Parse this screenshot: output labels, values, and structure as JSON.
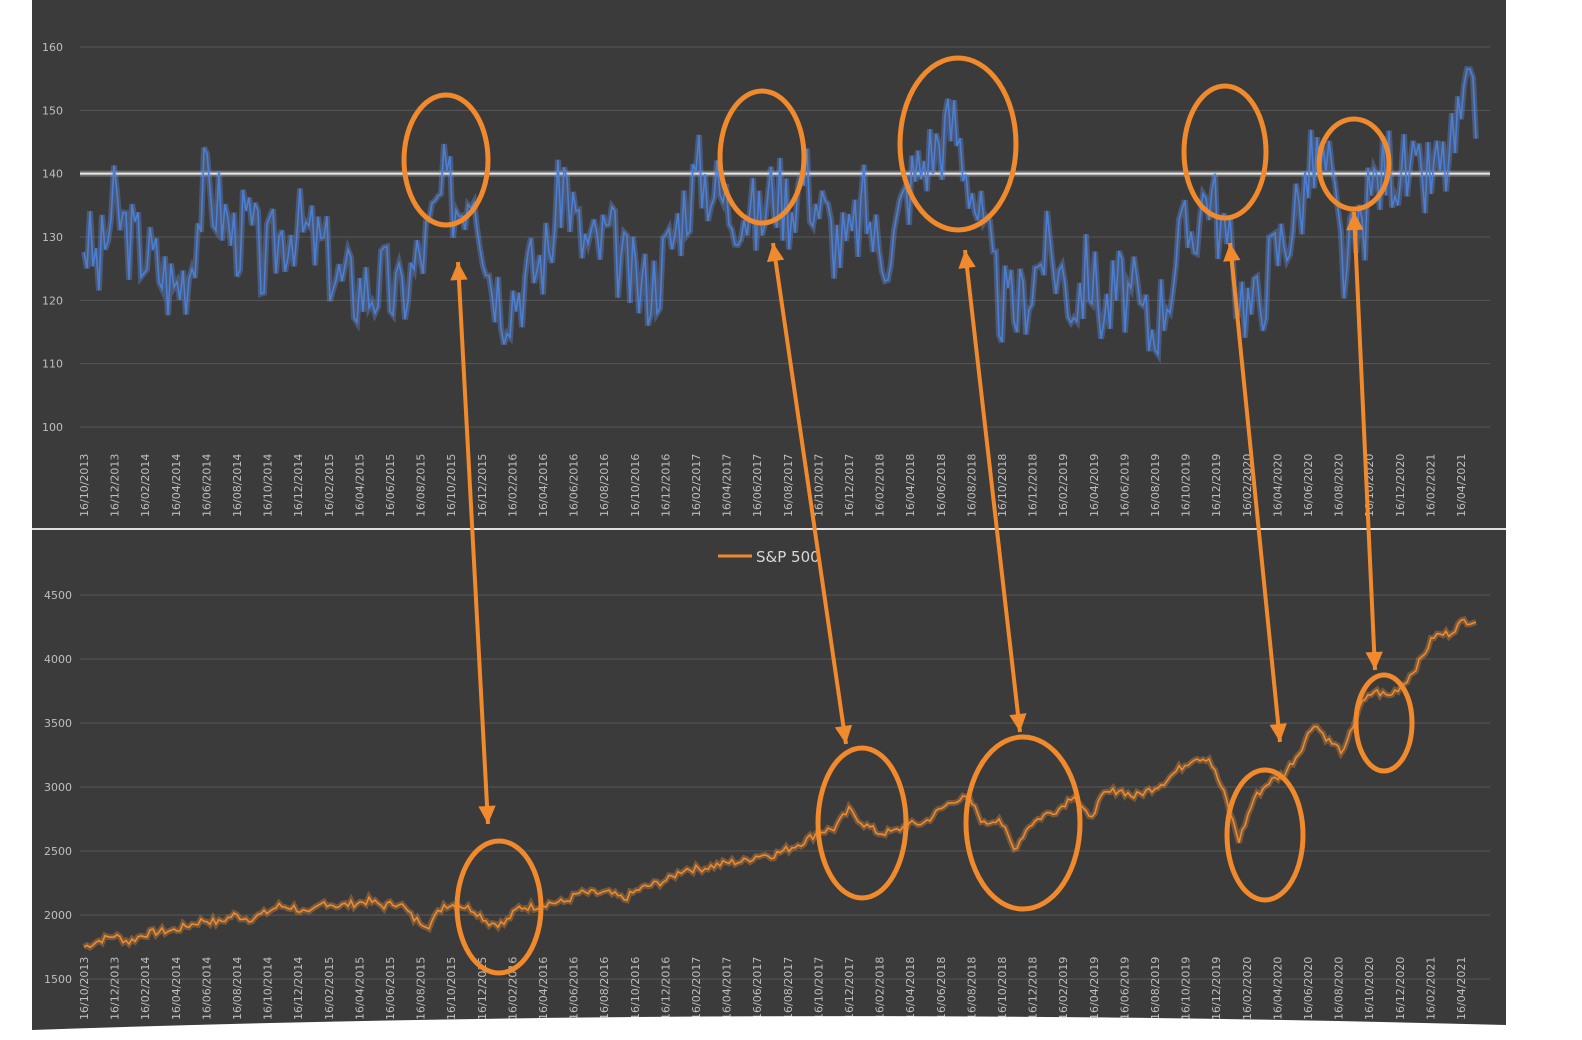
{
  "chart_data": [
    {
      "type": "line",
      "ylim": [
        100,
        160
      ],
      "yticks": [
        100,
        110,
        120,
        130,
        140,
        150,
        160
      ],
      "grid": true,
      "reference_line": 140,
      "xtick_labels": [
        "16/10/2013",
        "16/12/2013",
        "16/02/2014",
        "16/04/2014",
        "16/06/2014",
        "16/08/2014",
        "16/10/2014",
        "16/12/2014",
        "16/02/2015",
        "16/04/2015",
        "16/06/2015",
        "16/08/2015",
        "16/10/2015",
        "16/12/2015",
        "16/02/2016",
        "16/04/2016",
        "16/06/2016",
        "16/08/2016",
        "16/10/2016",
        "16/12/2016",
        "16/02/2017",
        "16/04/2017",
        "16/06/2017",
        "16/08/2017",
        "16/10/2017",
        "16/12/2017",
        "16/02/2018",
        "16/04/2018",
        "16/06/2018",
        "16/08/2018",
        "16/10/2018",
        "16/12/2018",
        "16/02/2019",
        "16/04/2019",
        "16/06/2019",
        "16/08/2019",
        "16/10/2019",
        "16/12/2019",
        "16/02/2020",
        "16/04/2020",
        "16/06/2020",
        "16/08/2020",
        "16/10/2020",
        "16/12/2020",
        "16/02/2021",
        "16/04/2021"
      ],
      "x_start": "2013-10",
      "x_step": "month",
      "series": [
        {
          "color": "#4a7fd4",
          "values": [
            130,
            125,
            135,
            130,
            128,
            125,
            122,
            125,
            138,
            135,
            130,
            132,
            125,
            130,
            132,
            130,
            128,
            123,
            122,
            122,
            123,
            120,
            125,
            130,
            138,
            135,
            140,
            125,
            120,
            122,
            125,
            128,
            140,
            130,
            128,
            130,
            125,
            122,
            123,
            128,
            135,
            140,
            138,
            135,
            135,
            132,
            138,
            135,
            140,
            135,
            130,
            128,
            135,
            128,
            130,
            138,
            142,
            145,
            148,
            140,
            130,
            120,
            118,
            122,
            128,
            125,
            120,
            125,
            118,
            122,
            120,
            115,
            120,
            128,
            132,
            138,
            130,
            122,
            118,
            125,
            130,
            135,
            142,
            140,
            125,
            130,
            138,
            142,
            140,
            138,
            140,
            142,
            150
          ]
        }
      ]
    },
    {
      "type": "line",
      "ylim": [
        1500,
        5000
      ],
      "yticks": [
        1500,
        2000,
        2500,
        3000,
        3500,
        4000,
        4500
      ],
      "grid": true,
      "legend": "top-center",
      "xtick_labels_truncated": true,
      "series": [
        {
          "name": "S&P 500",
          "color": "#f08a2c",
          "values": [
            1750,
            1800,
            1840,
            1790,
            1850,
            1870,
            1880,
            1920,
            1960,
            1940,
            2000,
            1970,
            2010,
            2070,
            2060,
            2000,
            2100,
            2070,
            2090,
            2110,
            2070,
            2100,
            1970,
            1920,
            2080,
            2080,
            2040,
            1940,
            1930,
            2060,
            2065,
            2095,
            2100,
            2170,
            2170,
            2170,
            2125,
            2200,
            2240,
            2280,
            2360,
            2360,
            2385,
            2410,
            2420,
            2470,
            2470,
            2520,
            2575,
            2650,
            2675,
            2820,
            2710,
            2640,
            2650,
            2705,
            2720,
            2815,
            2900,
            2910,
            2710,
            2760,
            2510,
            2700,
            2780,
            2830,
            2945,
            2750,
            2940,
            2980,
            2925,
            2975,
            3040,
            3140,
            3230,
            3225,
            2950,
            2580,
            2910,
            3040,
            3100,
            3270,
            3500,
            3360,
            3270,
            3620,
            3750,
            3710,
            3810,
            3970,
            4180,
            4200,
            4300
          ]
        }
      ]
    }
  ]
}
